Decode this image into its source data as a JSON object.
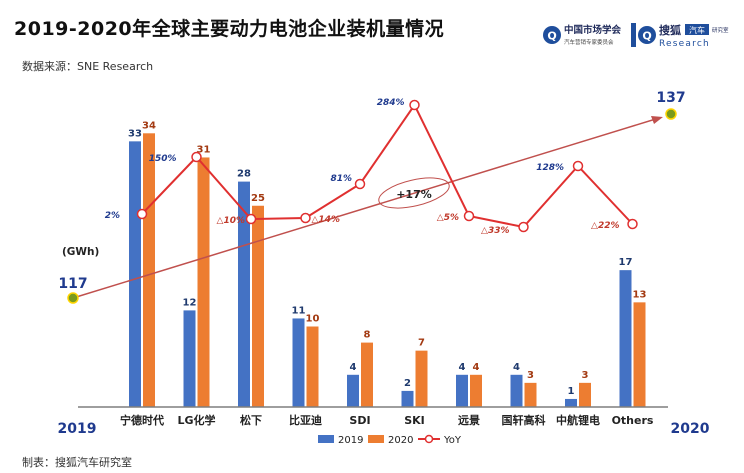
{
  "header": {
    "title": "2019-2020年全球主要动力电池企业装机量情况",
    "source": "数据来源：SNE Research",
    "logo1_name": "中国市场学会",
    "logo1_sub": "汽车营销专家委员会",
    "logo2_name": "搜狐",
    "logo2_tag": "汽车",
    "logo2_sub": "Research",
    "logo2_side": "研究室"
  },
  "footer": {
    "text": "制表：搜狐汽车研究室"
  },
  "colors": {
    "s2019": "#4472c4",
    "s2020": "#ed7d31",
    "yoy": "#e03030",
    "axis": "#7f7f7f",
    "trend": "#c0504d",
    "marker": "#7a9a1c"
  },
  "chart_data": {
    "type": "bar",
    "categories": [
      "宁德时代",
      "LG化学",
      "松下",
      "比亚迪",
      "SDI",
      "SKI",
      "远景",
      "国轩高科",
      "中航锂电",
      "Others"
    ],
    "series": [
      {
        "name": "2019",
        "values": [
          33,
          12,
          28,
          11,
          4,
          2,
          4,
          4,
          1,
          17
        ]
      },
      {
        "name": "2020",
        "values": [
          34,
          31,
          25,
          10,
          8,
          7,
          4,
          3,
          3,
          13
        ]
      }
    ],
    "yoy": {
      "name": "YoY",
      "labels": [
        "2%",
        "150%",
        "△10%",
        "△14%",
        "81%",
        "284%",
        "△5%",
        "△33%",
        "128%",
        "△22%"
      ]
    },
    "ylabel": "(GWh)",
    "totals": {
      "start": {
        "year": "2019",
        "value": "117"
      },
      "end": {
        "year": "2020",
        "value": "137"
      },
      "growth_label": "+17%"
    },
    "legend": [
      "2019",
      "2020",
      "YoY"
    ],
    "legend_position": "bottom"
  }
}
